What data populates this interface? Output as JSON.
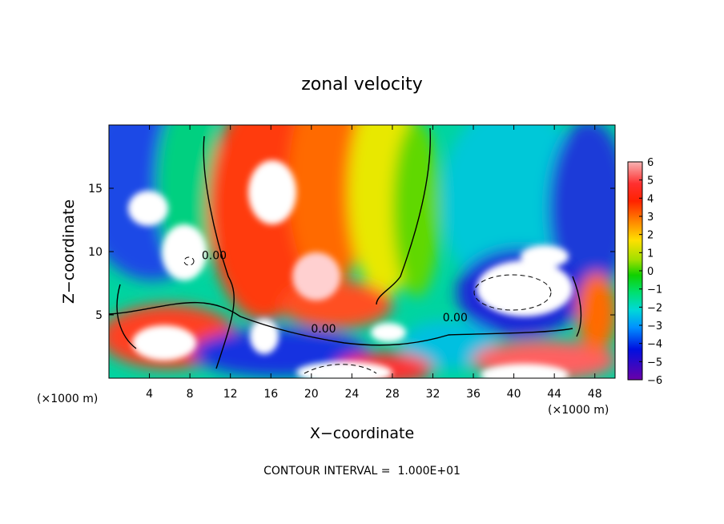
{
  "chart_data": {
    "type": "heatmap",
    "title": "zonal velocity",
    "xlabel": "X−coordinate",
    "ylabel": "Z−coordinate",
    "x_unit": "(×1000 m)",
    "y_unit": "(×1000 m)",
    "xlim": [
      0,
      50
    ],
    "ylim": [
      0,
      20
    ],
    "x_ticks": [
      4,
      8,
      12,
      16,
      20,
      24,
      28,
      32,
      36,
      40,
      44,
      48
    ],
    "y_ticks": [
      5,
      10,
      15
    ],
    "colorbar": {
      "range": [
        -6,
        6
      ],
      "ticks": [
        "6",
        "5",
        "4",
        "3",
        "2",
        "1",
        "0",
        "−1",
        "−2",
        "−3",
        "−4",
        "−5",
        "−6"
      ],
      "tick_values": [
        6,
        5,
        4,
        3,
        2,
        1,
        0,
        -1,
        -2,
        -3,
        -4,
        -5,
        -6
      ],
      "colors": [
        "#f4a6a6",
        "#ff4444",
        "#ff2a00",
        "#ff8800",
        "#ffd200",
        "#e6f000",
        "#8cdc00",
        "#00d200",
        "#00e68c",
        "#00d2d2",
        "#0096ff",
        "#0000e6",
        "#6400aa"
      ]
    },
    "contour_labels": [
      {
        "text": "0.00",
        "x": 10.4,
        "z": 9.4
      },
      {
        "text": "0.00",
        "x": 21.2,
        "z": 3.6
      },
      {
        "text": "0.00",
        "x": 34.2,
        "z": 4.5
      }
    ],
    "footer": "CONTOUR INTERVAL =  1.000E+01"
  }
}
